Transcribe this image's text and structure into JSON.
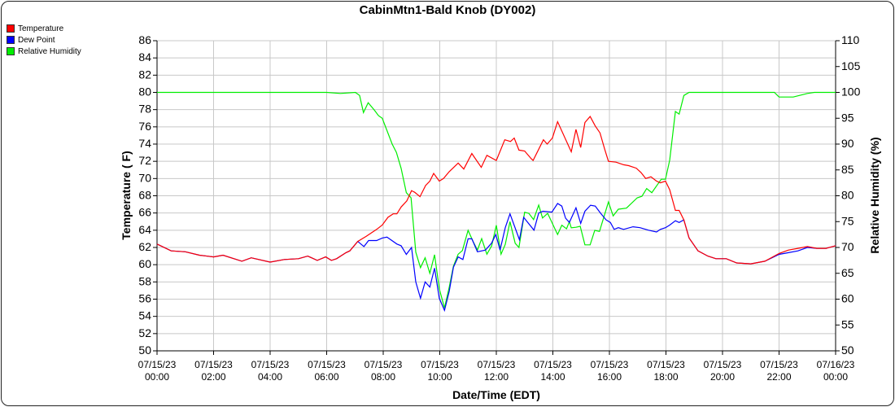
{
  "chart_data": {
    "type": "line",
    "title": "CabinMtn1-Bald Knob (DY002)",
    "xlabel": "Date/Time (EDT)",
    "ylabel": "Temperature ( F)",
    "y2label": "Relative Humidity (%)",
    "ylim": [
      50,
      86
    ],
    "y2lim": [
      50,
      110
    ],
    "yticks": [
      50,
      52,
      54,
      56,
      58,
      60,
      62,
      64,
      66,
      68,
      70,
      72,
      74,
      76,
      78,
      80,
      82,
      84,
      86
    ],
    "y2ticks": [
      50,
      55,
      60,
      65,
      70,
      75,
      80,
      85,
      90,
      95,
      100,
      105,
      110
    ],
    "xticks": [
      {
        "date": "07/15/23",
        "time": "00:00"
      },
      {
        "date": "07/15/23",
        "time": "02:00"
      },
      {
        "date": "07/15/23",
        "time": "04:00"
      },
      {
        "date": "07/15/23",
        "time": "06:00"
      },
      {
        "date": "07/15/23",
        "time": "08:00"
      },
      {
        "date": "07/15/23",
        "time": "10:00"
      },
      {
        "date": "07/15/23",
        "time": "12:00"
      },
      {
        "date": "07/15/23",
        "time": "14:00"
      },
      {
        "date": "07/15/23",
        "time": "16:00"
      },
      {
        "date": "07/15/23",
        "time": "18:00"
      },
      {
        "date": "07/15/23",
        "time": "20:00"
      },
      {
        "date": "07/15/23",
        "time": "22:00"
      },
      {
        "date": "07/16/23",
        "time": "00:00"
      }
    ],
    "grid": true,
    "legend_position": "top-left",
    "series": [
      {
        "name": "Temperature",
        "color": "#ff0000",
        "axis": "left",
        "points": [
          [
            "00:00",
            62.4
          ],
          [
            "00:30",
            61.6
          ],
          [
            "01:00",
            61.5
          ],
          [
            "01:30",
            61.1
          ],
          [
            "02:00",
            60.9
          ],
          [
            "02:20",
            61.1
          ],
          [
            "03:00",
            60.4
          ],
          [
            "03:20",
            60.8
          ],
          [
            "04:00",
            60.3
          ],
          [
            "04:30",
            60.6
          ],
          [
            "05:00",
            60.7
          ],
          [
            "05:20",
            61.0
          ],
          [
            "05:40",
            60.5
          ],
          [
            "05:58",
            60.9
          ],
          [
            "06:10",
            60.5
          ],
          [
            "06:21",
            60.7
          ],
          [
            "06:41",
            61.4
          ],
          [
            "06:49",
            61.6
          ],
          [
            "07:06",
            62.7
          ],
          [
            "07:24",
            63.3
          ],
          [
            "07:46",
            64.1
          ],
          [
            "07:58",
            64.6
          ],
          [
            "08:10",
            65.5
          ],
          [
            "08:21",
            65.9
          ],
          [
            "08:29",
            65.9
          ],
          [
            "08:38",
            66.7
          ],
          [
            "08:50",
            67.4
          ],
          [
            "09:00",
            68.6
          ],
          [
            "09:07",
            68.4
          ],
          [
            "09:18",
            67.9
          ],
          [
            "09:30",
            69.2
          ],
          [
            "09:39",
            69.7
          ],
          [
            "09:47",
            70.6
          ],
          [
            "09:59",
            69.7
          ],
          [
            "10:08",
            70.0
          ],
          [
            "10:20",
            70.8
          ],
          [
            "10:39",
            71.8
          ],
          [
            "10:51",
            71.1
          ],
          [
            "11:08",
            72.9
          ],
          [
            "11:28",
            71.3
          ],
          [
            "11:40",
            72.7
          ],
          [
            "12:00",
            72.1
          ],
          [
            "12:18",
            74.5
          ],
          [
            "12:30",
            74.3
          ],
          [
            "12:38",
            74.7
          ],
          [
            "12:48",
            73.3
          ],
          [
            "13:00",
            73.2
          ],
          [
            "13:14",
            72.3
          ],
          [
            "13:18",
            72.1
          ],
          [
            "13:40",
            74.5
          ],
          [
            "13:48",
            74.0
          ],
          [
            "13:59",
            74.7
          ],
          [
            "14:10",
            76.6
          ],
          [
            "14:39",
            73.1
          ],
          [
            "14:49",
            75.7
          ],
          [
            "14:59",
            73.6
          ],
          [
            "15:08",
            76.5
          ],
          [
            "15:19",
            77.2
          ],
          [
            "15:30",
            76.1
          ],
          [
            "15:40",
            75.3
          ],
          [
            "15:50",
            73.4
          ],
          [
            "15:58",
            72.0
          ],
          [
            "16:14",
            71.9
          ],
          [
            "16:30",
            71.6
          ],
          [
            "16:41",
            71.5
          ],
          [
            "16:57",
            71.2
          ],
          [
            "17:07",
            70.7
          ],
          [
            "17:17",
            70.0
          ],
          [
            "17:28",
            70.2
          ],
          [
            "17:40",
            69.7
          ],
          [
            "17:48",
            69.5
          ],
          [
            "17:59",
            69.7
          ],
          [
            "18:08",
            68.7
          ],
          [
            "18:20",
            66.3
          ],
          [
            "18:28",
            66.3
          ],
          [
            "18:38",
            65.2
          ],
          [
            "18:49",
            63.1
          ],
          [
            "19:08",
            61.6
          ],
          [
            "19:29",
            61.0
          ],
          [
            "19:46",
            60.7
          ],
          [
            "20:08",
            60.7
          ],
          [
            "20:30",
            60.2
          ],
          [
            "21:00",
            60.1
          ],
          [
            "21:30",
            60.4
          ],
          [
            "22:00",
            61.3
          ],
          [
            "22:20",
            61.7
          ],
          [
            "22:40",
            61.9
          ],
          [
            "23:00",
            62.1
          ],
          [
            "23:20",
            61.9
          ],
          [
            "23:40",
            61.9
          ],
          [
            "24:00",
            62.2
          ]
        ]
      },
      {
        "name": "Dew Point",
        "color": "#0000ff",
        "axis": "left",
        "points": [
          [
            "00:00",
            62.4
          ],
          [
            "00:30",
            61.6
          ],
          [
            "01:00",
            61.5
          ],
          [
            "01:30",
            61.1
          ],
          [
            "02:00",
            60.9
          ],
          [
            "02:20",
            61.1
          ],
          [
            "03:00",
            60.4
          ],
          [
            "03:20",
            60.8
          ],
          [
            "04:00",
            60.3
          ],
          [
            "04:30",
            60.6
          ],
          [
            "05:00",
            60.7
          ],
          [
            "05:20",
            61.0
          ],
          [
            "05:40",
            60.5
          ],
          [
            "05:58",
            60.9
          ],
          [
            "06:10",
            60.5
          ],
          [
            "06:21",
            60.7
          ],
          [
            "06:41",
            61.4
          ],
          [
            "06:49",
            61.6
          ],
          [
            "07:06",
            62.7
          ],
          [
            "07:19",
            62.1
          ],
          [
            "07:29",
            62.8
          ],
          [
            "07:46",
            62.8
          ],
          [
            "07:58",
            63.1
          ],
          [
            "08:08",
            63.2
          ],
          [
            "08:29",
            62.4
          ],
          [
            "08:38",
            62.2
          ],
          [
            "08:49",
            61.2
          ],
          [
            "09:00",
            62.0
          ],
          [
            "09:09",
            58.0
          ],
          [
            "09:19",
            56.1
          ],
          [
            "09:29",
            58.0
          ],
          [
            "09:39",
            57.4
          ],
          [
            "09:49",
            59.6
          ],
          [
            "09:59",
            56.1
          ],
          [
            "10:10",
            54.7
          ],
          [
            "10:20",
            56.9
          ],
          [
            "10:29",
            59.7
          ],
          [
            "10:39",
            60.9
          ],
          [
            "10:49",
            60.6
          ],
          [
            "11:00",
            63.0
          ],
          [
            "11:08",
            63.0
          ],
          [
            "11:20",
            61.5
          ],
          [
            "11:37",
            61.7
          ],
          [
            "11:50",
            62.5
          ],
          [
            "11:59",
            63.5
          ],
          [
            "12:08",
            61.7
          ],
          [
            "12:19",
            64.3
          ],
          [
            "12:29",
            65.9
          ],
          [
            "12:49",
            62.9
          ],
          [
            "12:58",
            65.5
          ],
          [
            "13:20",
            64.0
          ],
          [
            "13:30",
            66.0
          ],
          [
            "13:39",
            66.2
          ],
          [
            "13:58",
            66.1
          ],
          [
            "14:10",
            67.1
          ],
          [
            "14:19",
            66.8
          ],
          [
            "14:27",
            65.4
          ],
          [
            "14:35",
            64.9
          ],
          [
            "14:49",
            66.6
          ],
          [
            "14:59",
            64.8
          ],
          [
            "15:08",
            66.2
          ],
          [
            "15:20",
            66.9
          ],
          [
            "15:30",
            66.8
          ],
          [
            "15:41",
            66.0
          ],
          [
            "15:53",
            65.2
          ],
          [
            "16:02",
            64.9
          ],
          [
            "16:10",
            64.1
          ],
          [
            "16:19",
            64.3
          ],
          [
            "16:30",
            64.1
          ],
          [
            "16:50",
            64.4
          ],
          [
            "17:05",
            64.3
          ],
          [
            "17:23",
            64.0
          ],
          [
            "17:40",
            63.8
          ],
          [
            "17:48",
            64.1
          ],
          [
            "17:59",
            64.3
          ],
          [
            "18:08",
            64.6
          ],
          [
            "18:20",
            65.1
          ],
          [
            "18:28",
            64.9
          ],
          [
            "18:38",
            65.2
          ],
          [
            "18:49",
            63.1
          ],
          [
            "19:08",
            61.6
          ],
          [
            "19:29",
            61.0
          ],
          [
            "19:46",
            60.7
          ],
          [
            "20:08",
            60.7
          ],
          [
            "20:30",
            60.2
          ],
          [
            "21:00",
            60.1
          ],
          [
            "21:30",
            60.4
          ],
          [
            "22:00",
            61.2
          ],
          [
            "22:20",
            61.4
          ],
          [
            "22:40",
            61.6
          ],
          [
            "23:00",
            62.0
          ],
          [
            "23:20",
            61.9
          ],
          [
            "23:40",
            61.9
          ],
          [
            "24:00",
            62.2
          ]
        ]
      },
      {
        "name": "Relative Humidity",
        "color": "#00ee00",
        "axis": "right",
        "points": [
          [
            "00:00",
            100
          ],
          [
            "06:00",
            100
          ],
          [
            "06:29",
            99.8
          ],
          [
            "07:01",
            100
          ],
          [
            "07:10",
            99.4
          ],
          [
            "07:18",
            96.1
          ],
          [
            "07:28",
            98.0
          ],
          [
            "07:41",
            96.6
          ],
          [
            "07:50",
            95.5
          ],
          [
            "07:58",
            95.0
          ],
          [
            "08:19",
            90.0
          ],
          [
            "08:28",
            88.4
          ],
          [
            "08:38",
            85.3
          ],
          [
            "08:49",
            80.6
          ],
          [
            "08:59",
            79.6
          ],
          [
            "09:09",
            69.1
          ],
          [
            "09:19",
            66.1
          ],
          [
            "09:29",
            68.0
          ],
          [
            "09:39",
            65.0
          ],
          [
            "09:49",
            68.6
          ],
          [
            "09:59",
            62.0
          ],
          [
            "10:10",
            58.3
          ],
          [
            "10:20",
            62.3
          ],
          [
            "10:29",
            66.4
          ],
          [
            "10:39",
            68.7
          ],
          [
            "10:48",
            69.4
          ],
          [
            "11:00",
            73.3
          ],
          [
            "11:11",
            71.1
          ],
          [
            "11:20",
            69.5
          ],
          [
            "11:29",
            71.7
          ],
          [
            "11:40",
            68.7
          ],
          [
            "11:50",
            70.3
          ],
          [
            "12:00",
            74.3
          ],
          [
            "12:10",
            68.7
          ],
          [
            "12:19",
            70.6
          ],
          [
            "12:29",
            75.0
          ],
          [
            "12:40",
            70.8
          ],
          [
            "12:48",
            70.0
          ],
          [
            "13:00",
            76.8
          ],
          [
            "13:09",
            76.6
          ],
          [
            "13:19",
            75.4
          ],
          [
            "13:30",
            78.2
          ],
          [
            "13:38",
            75.7
          ],
          [
            "13:49",
            76.6
          ],
          [
            "14:10",
            72.5
          ],
          [
            "14:19",
            74.3
          ],
          [
            "14:29",
            73.6
          ],
          [
            "14:35",
            75.0
          ],
          [
            "14:39",
            73.8
          ],
          [
            "14:49",
            73.9
          ],
          [
            "14:58",
            74.1
          ],
          [
            "15:08",
            70.5
          ],
          [
            "15:19",
            70.5
          ],
          [
            "15:29",
            73.3
          ],
          [
            "15:39",
            73.1
          ],
          [
            "15:58",
            78.8
          ],
          [
            "16:08",
            76.1
          ],
          [
            "16:19",
            77.4
          ],
          [
            "16:36",
            77.6
          ],
          [
            "16:59",
            79.6
          ],
          [
            "17:09",
            79.9
          ],
          [
            "17:19",
            81.4
          ],
          [
            "17:30",
            80.6
          ],
          [
            "17:50",
            83.2
          ],
          [
            "17:59",
            83.2
          ],
          [
            "18:08",
            86.9
          ],
          [
            "18:20",
            96.3
          ],
          [
            "18:28",
            95.8
          ],
          [
            "18:38",
            99.4
          ],
          [
            "18:49",
            100
          ],
          [
            "21:50",
            100
          ],
          [
            "22:00",
            99.1
          ],
          [
            "22:30",
            99.1
          ],
          [
            "23:00",
            99.8
          ],
          [
            "23:15",
            100
          ],
          [
            "24:00",
            100
          ]
        ]
      }
    ]
  }
}
